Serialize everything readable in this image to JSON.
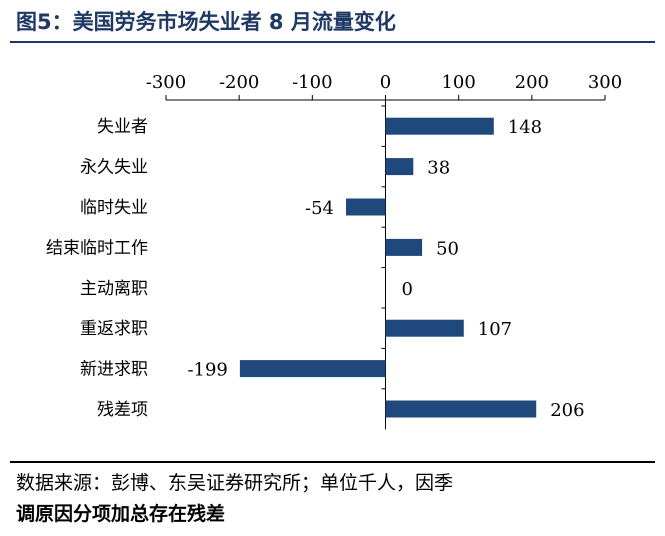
{
  "header": {
    "title": "图5：美国劳务市场失业者 8 月流量变化"
  },
  "footer": {
    "source": "数据来源：彭博、东吴证券研究所；单位千人，因季",
    "note": "调原因分项加总存在残差"
  },
  "colors": {
    "bar": "#1f497d",
    "title": "#1f3864"
  },
  "chart_data": {
    "type": "bar",
    "orientation": "horizontal",
    "categories": [
      "失业者",
      "永久失业",
      "临时失业",
      "结束临时工作",
      "主动离职",
      "重返求职",
      "新进求职",
      "残差项"
    ],
    "values": [
      148,
      38,
      -54,
      50,
      0,
      107,
      -199,
      206
    ],
    "xlim": [
      -300,
      300
    ],
    "xticks": [
      -300,
      -200,
      -100,
      0,
      100,
      200,
      300
    ],
    "xaxis_position": "top",
    "grid": false,
    "legend": "none"
  }
}
